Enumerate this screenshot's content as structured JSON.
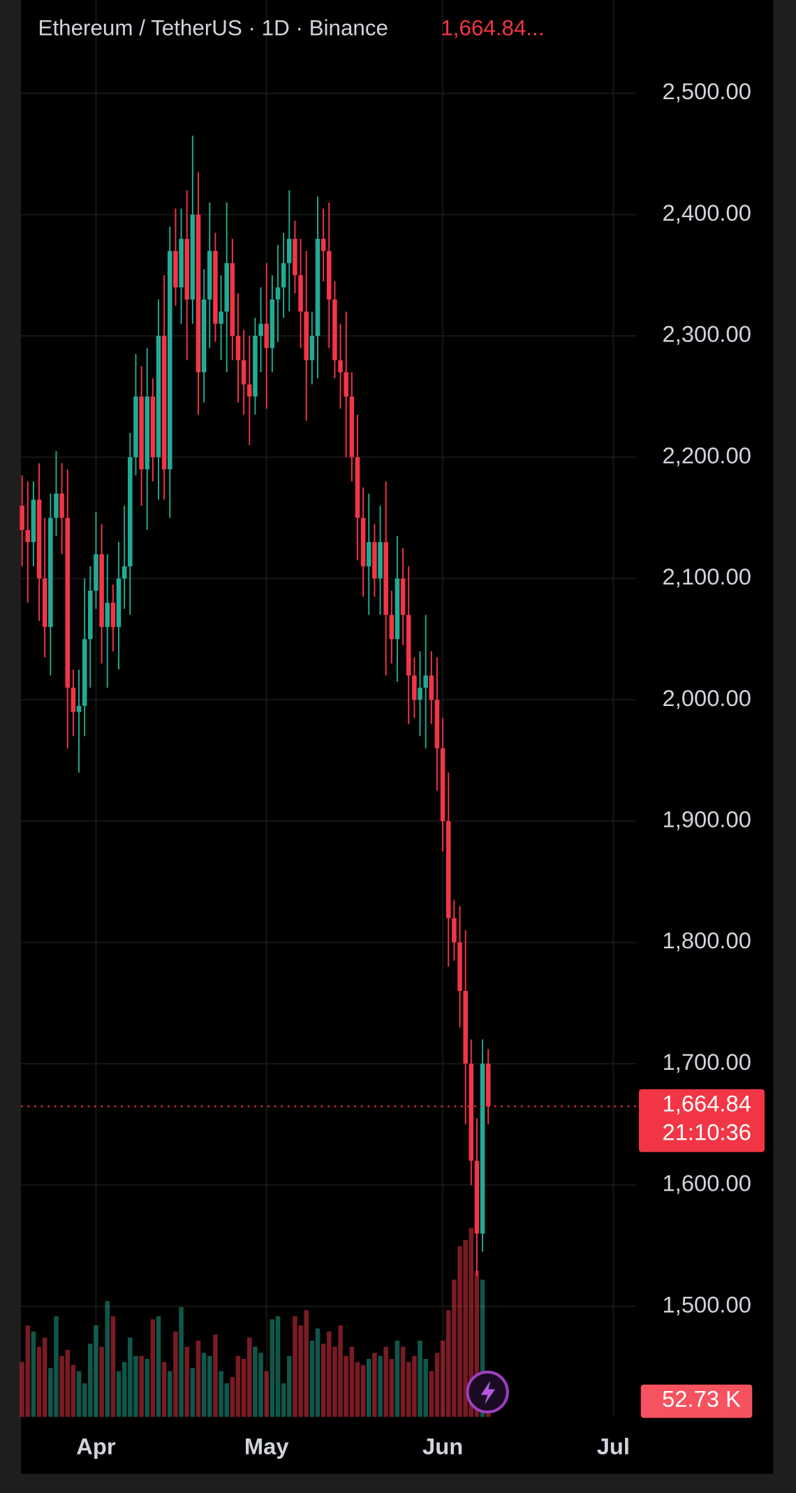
{
  "chart_data": {
    "type": "candlestick",
    "title": "Ethereum / TetherUS · 1D · Binance",
    "header_price": "1,664.84...",
    "up_color": "#22ab94",
    "down_color": "#f23645",
    "open": [
      2160,
      2140,
      2130,
      2165,
      2100,
      2060,
      2150,
      2170,
      2150,
      2010,
      1990,
      1995,
      2050,
      2090,
      2120,
      2060,
      2080,
      2060,
      2100,
      2110,
      2200,
      2250,
      2190,
      2250,
      2200,
      2300,
      2190,
      2370,
      2340,
      2380,
      2330,
      2400,
      2270,
      2330,
      2370,
      2310,
      2320,
      2360,
      2300,
      2280,
      2260,
      2250,
      2300,
      2310,
      2290,
      2330,
      2340,
      2360,
      2380,
      2350,
      2320,
      2280,
      2300,
      2380,
      2370,
      2330,
      2280,
      2270,
      2250,
      2200,
      2150,
      2110,
      2130,
      2100,
      2130,
      2070,
      2050,
      2100,
      2070,
      2020,
      2000,
      2010,
      2020,
      2000,
      1960,
      1900,
      1820,
      1800,
      1760,
      1700,
      1620,
      1560,
      1700
    ],
    "high": [
      2185,
      2180,
      2180,
      2195,
      2150,
      2170,
      2205,
      2195,
      2190,
      2025,
      2025,
      2100,
      2110,
      2155,
      2145,
      2120,
      2095,
      2130,
      2160,
      2220,
      2285,
      2275,
      2290,
      2265,
      2330,
      2350,
      2390,
      2405,
      2405,
      2420,
      2465,
      2435,
      2355,
      2410,
      2385,
      2350,
      2410,
      2380,
      2335,
      2305,
      2300,
      2315,
      2340,
      2360,
      2350,
      2375,
      2385,
      2420,
      2395,
      2380,
      2370,
      2320,
      2415,
      2405,
      2410,
      2345,
      2310,
      2320,
      2270,
      2235,
      2175,
      2170,
      2145,
      2160,
      2180,
      2090,
      2135,
      2125,
      2110,
      2035,
      2040,
      2070,
      2040,
      2035,
      1985,
      1940,
      1835,
      1830,
      1810,
      1720,
      1655,
      1720,
      1712
    ],
    "low": [
      2110,
      2080,
      2110,
      2065,
      2035,
      2020,
      2135,
      2120,
      1960,
      1970,
      1940,
      1970,
      2010,
      2075,
      2030,
      2010,
      2040,
      2025,
      2075,
      2070,
      2185,
      2160,
      2140,
      2180,
      2165,
      2165,
      2150,
      2325,
      2310,
      2280,
      2310,
      2235,
      2245,
      2290,
      2295,
      2280,
      2270,
      2280,
      2245,
      2235,
      2210,
      2235,
      2270,
      2240,
      2270,
      2295,
      2315,
      2320,
      2335,
      2290,
      2230,
      2260,
      2265,
      2345,
      2290,
      2265,
      2240,
      2200,
      2180,
      2115,
      2085,
      2070,
      2085,
      2070,
      2020,
      2030,
      2015,
      2045,
      1980,
      1985,
      1970,
      1960,
      1980,
      1925,
      1875,
      1780,
      1785,
      1730,
      1650,
      1600,
      1525,
      1545,
      1650
    ],
    "close": [
      2140,
      2130,
      2165,
      2100,
      2060,
      2150,
      2170,
      2150,
      2010,
      1990,
      1995,
      2050,
      2090,
      2120,
      2060,
      2080,
      2060,
      2100,
      2110,
      2200,
      2250,
      2190,
      2250,
      2200,
      2300,
      2190,
      2370,
      2340,
      2380,
      2330,
      2400,
      2270,
      2330,
      2370,
      2310,
      2320,
      2360,
      2300,
      2280,
      2260,
      2250,
      2300,
      2310,
      2290,
      2330,
      2340,
      2360,
      2380,
      2350,
      2320,
      2280,
      2300,
      2380,
      2370,
      2330,
      2280,
      2270,
      2250,
      2200,
      2150,
      2110,
      2130,
      2100,
      2130,
      2070,
      2050,
      2100,
      2070,
      2020,
      2000,
      2010,
      2020,
      2000,
      1960,
      1900,
      1820,
      1800,
      1760,
      1700,
      1620,
      1560,
      1700,
      1664.84
    ],
    "volume": [
      180,
      300,
      280,
      230,
      260,
      160,
      330,
      200,
      220,
      170,
      150,
      110,
      240,
      300,
      230,
      380,
      330,
      150,
      180,
      260,
      200,
      200,
      190,
      320,
      330,
      180,
      150,
      280,
      360,
      230,
      160,
      250,
      210,
      200,
      270,
      150,
      110,
      130,
      200,
      190,
      260,
      230,
      210,
      150,
      320,
      330,
      110,
      200,
      330,
      300,
      350,
      250,
      290,
      240,
      280,
      230,
      300,
      200,
      230,
      180,
      170,
      190,
      210,
      200,
      230,
      190,
      250,
      230,
      180,
      200,
      250,
      190,
      150,
      210,
      250,
      350,
      450,
      560,
      580,
      620,
      480,
      450,
      52.73
    ],
    "volume_label": {
      "value": 52.73,
      "label": "52.73 K"
    },
    "last_price": {
      "value": 1664.84,
      "label": "1,664.84"
    },
    "countdown": "21:10:36",
    "ylim": [
      1408.9,
      2576.9
    ],
    "yticks": [
      {
        "value": 1500,
        "label": "1,500.00"
      },
      {
        "value": 1600,
        "label": "1,600.00"
      },
      {
        "value": 1700,
        "label": "1,700.00"
      },
      {
        "value": 1800,
        "label": "1,800.00"
      },
      {
        "value": 1900,
        "label": "1,900.00"
      },
      {
        "value": 2000,
        "label": "2,000.00"
      },
      {
        "value": 2100,
        "label": "2,100.00"
      },
      {
        "value": 2200,
        "label": "2,200.00"
      },
      {
        "value": 2300,
        "label": "2,300.00"
      },
      {
        "value": 2400,
        "label": "2,400.00"
      },
      {
        "value": 2500,
        "label": "2,500.00"
      }
    ],
    "xlim": [
      -0.2,
      108
    ],
    "xticks": [
      {
        "value": 13,
        "label": "Apr"
      },
      {
        "value": 43,
        "label": "May"
      },
      {
        "value": 74,
        "label": "Jun"
      },
      {
        "value": 104,
        "label": "Jul"
      }
    ],
    "grid": true
  }
}
